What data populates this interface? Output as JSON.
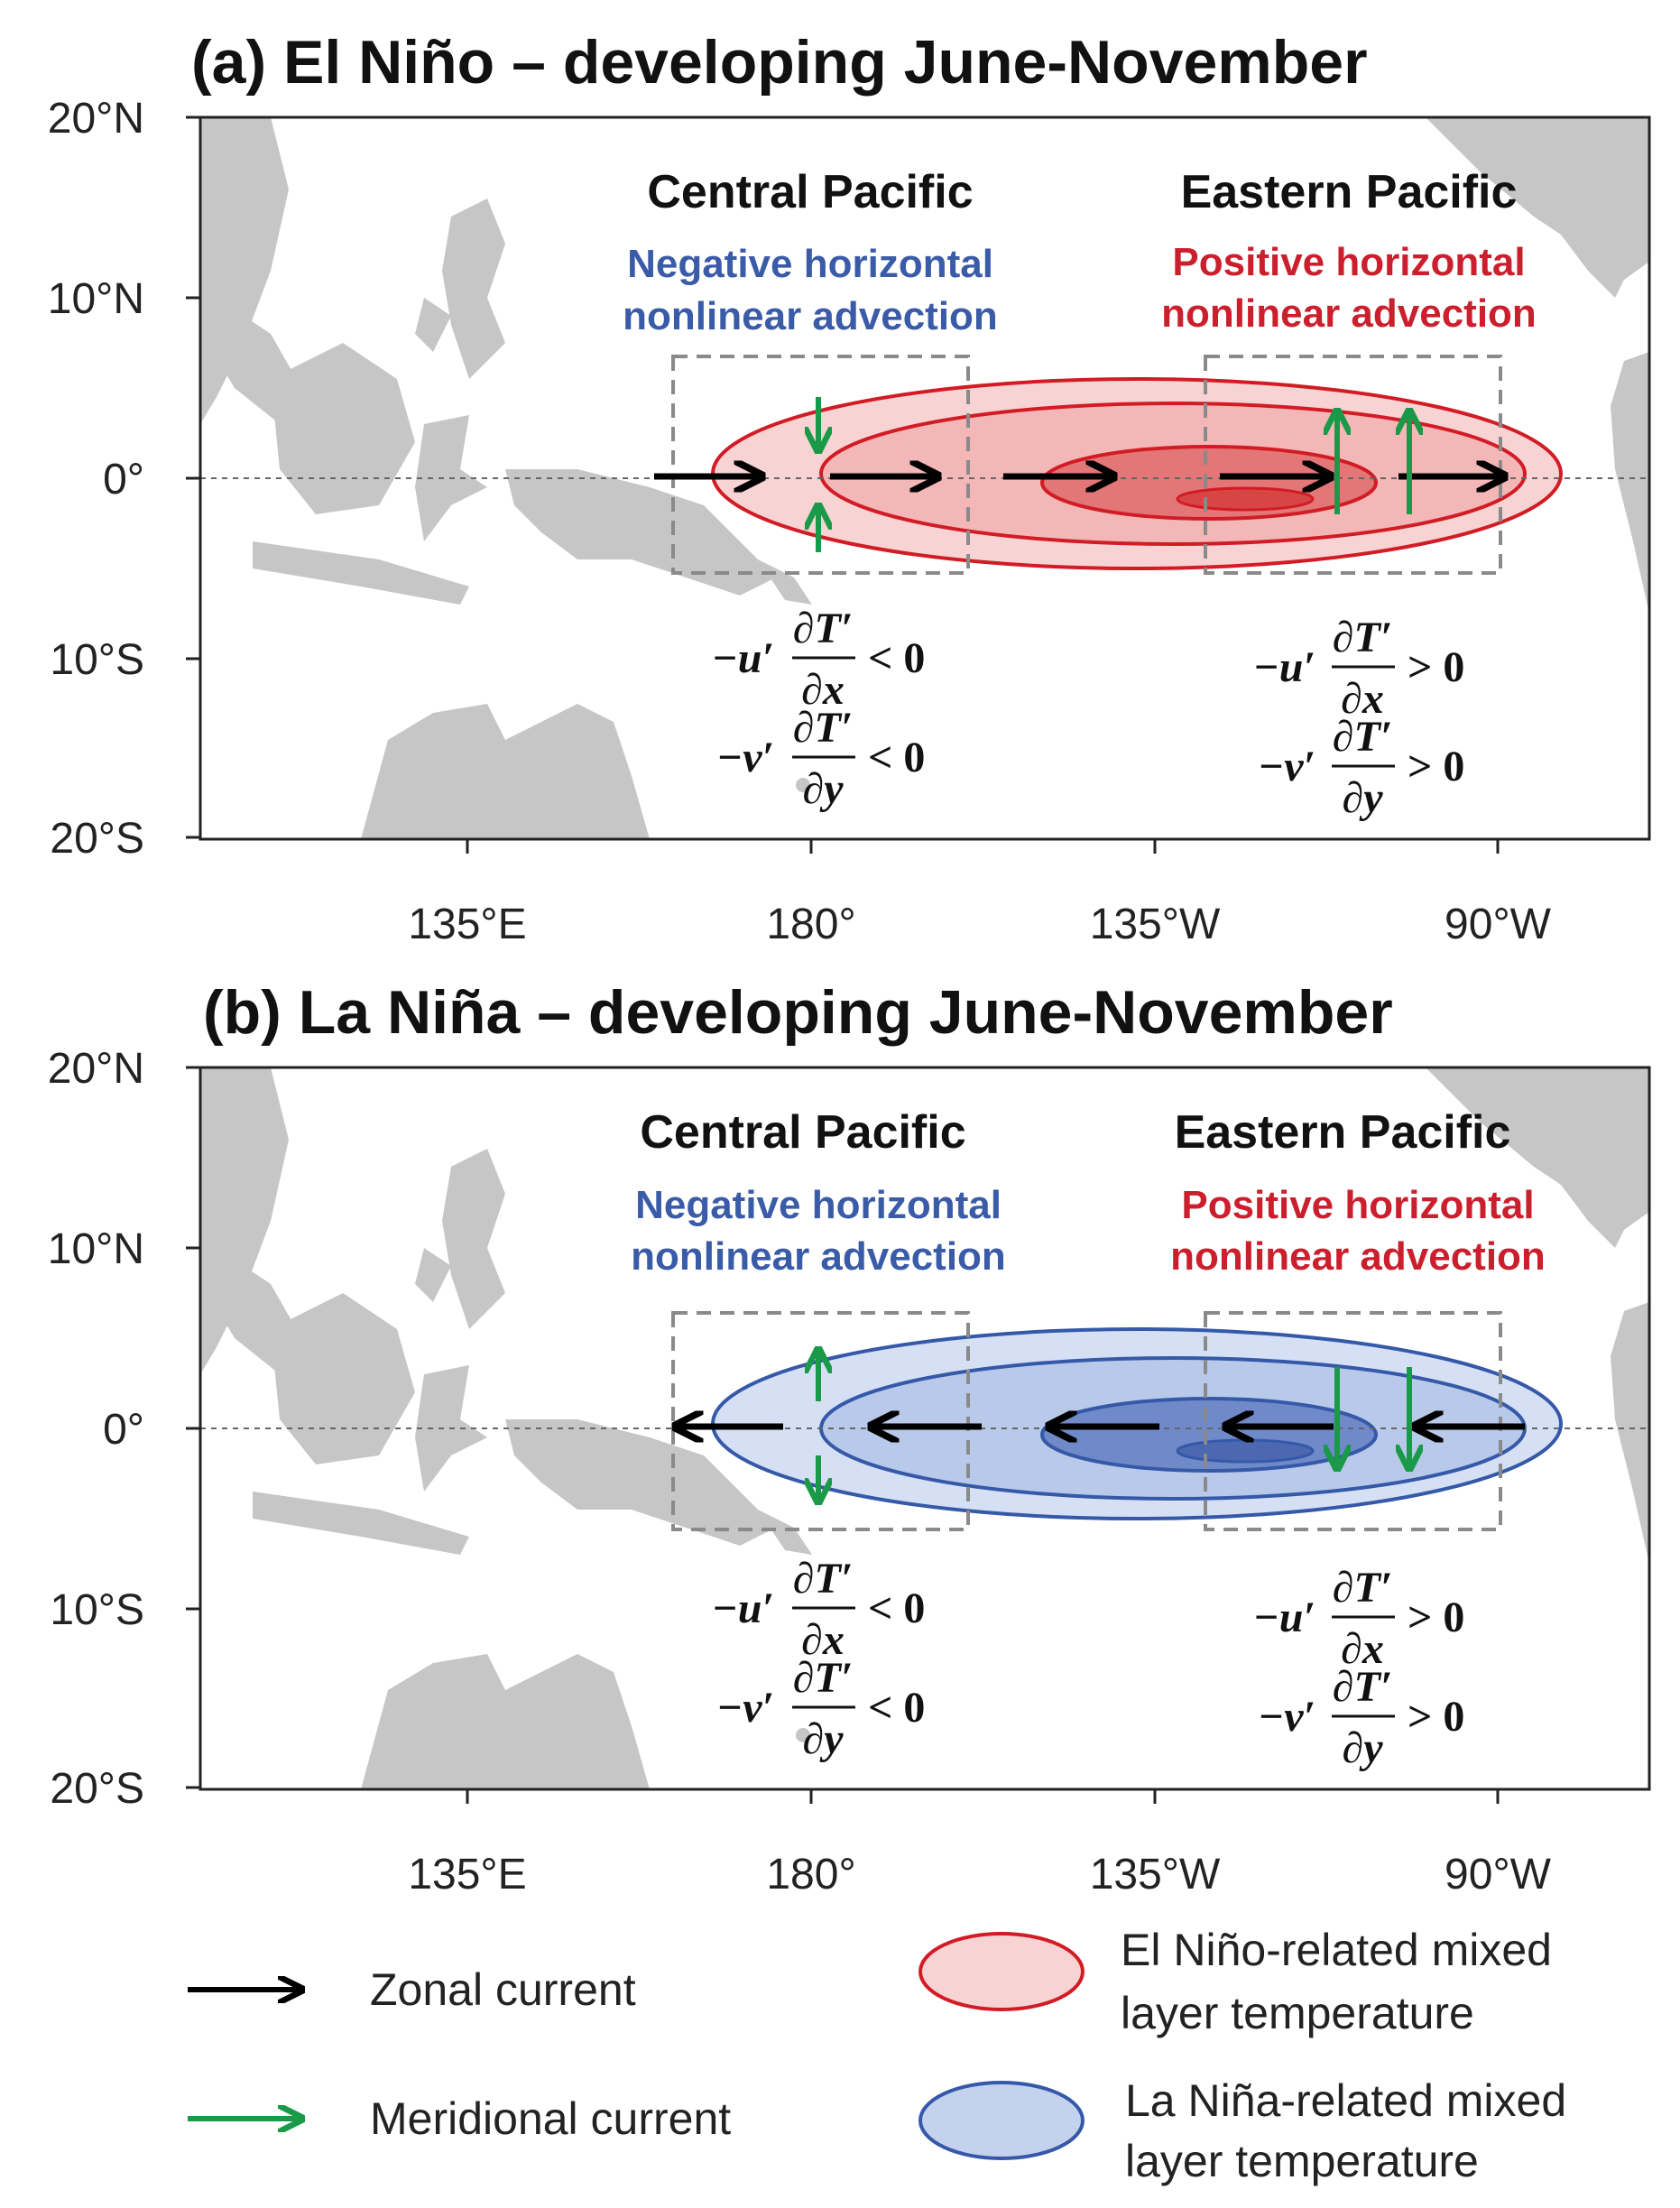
{
  "colors": {
    "land": "#c6c6c6",
    "el_nino_fill_light": "#f8d3d3",
    "el_nino_fill_mid": "#ee9a9a",
    "el_nino_fill_dark": "#e36a6a",
    "el_nino_outline": "#d21c25",
    "la_nina_fill_light": "#d6e0f4",
    "la_nina_fill_mid": "#a9bde6",
    "la_nina_fill_dark": "#5d7bc2",
    "la_nina_outline": "#3559a8",
    "zonal_arrow": "#000000",
    "meridional_arrow": "#1a9a48",
    "box": "#8a8a8a"
  },
  "panels": [
    {
      "title": "(a) El Niño – developing June-November",
      "y_ticks": [
        "20°N",
        "10°N",
        "0°",
        "10°S",
        "20°S"
      ],
      "x_ticks": [
        "135°E",
        "180°",
        "135°W",
        "90°W"
      ],
      "central": {
        "heading": "Central Pacific",
        "note_line1": "Negative  horizontal",
        "note_line2": "nonlinear advection",
        "eq1_lhs": "−u′",
        "eq1_num": "∂T′",
        "eq1_den": "∂x",
        "eq1_rel": "< 0",
        "eq2_lhs": "−v′",
        "eq2_num": "∂T′",
        "eq2_den": "∂y",
        "eq2_rel": "< 0"
      },
      "eastern": {
        "heading": "Eastern Pacific",
        "note_line1": "Positive   horizontal",
        "note_line2": "nonlinear advection",
        "eq1_lhs": "−u′",
        "eq1_num": "∂T′",
        "eq1_den": "∂x",
        "eq1_rel": "> 0",
        "eq2_lhs": "−v′",
        "eq2_num": "∂T′",
        "eq2_den": "∂y",
        "eq2_rel": "> 0"
      }
    },
    {
      "title": "(b) La Niña – developing June-November",
      "y_ticks": [
        "20°N",
        "10°N",
        "0°",
        "10°S",
        "20°S"
      ],
      "x_ticks": [
        "135°E",
        "180°",
        "135°W",
        "90°W"
      ],
      "central": {
        "heading": "Central Pacific",
        "note_line1": "Negative  horizontal",
        "note_line2": "nonlinear advection",
        "eq1_lhs": "−u′",
        "eq1_num": "∂T′",
        "eq1_den": "∂x",
        "eq1_rel": "< 0",
        "eq2_lhs": "−v′",
        "eq2_num": "∂T′",
        "eq2_den": "∂y",
        "eq2_rel": "< 0"
      },
      "eastern": {
        "heading": "Eastern Pacific",
        "note_line1": "Positive   horizontal",
        "note_line2": "nonlinear advection",
        "eq1_lhs": "−u′",
        "eq1_num": "∂T′",
        "eq1_den": "∂x",
        "eq1_rel": "> 0",
        "eq2_lhs": "−v′",
        "eq2_num": "∂T′",
        "eq2_den": "∂y",
        "eq2_rel": "> 0"
      }
    }
  ],
  "legend": {
    "zonal": "Zonal current",
    "meridional": "Meridional current",
    "el_nino_line1": "El  Niño-related  mixed",
    "el_nino_line2": "layer temperature",
    "la_nina_line1": "La  Niña-related  mixed",
    "la_nina_line2": "layer temperature"
  }
}
